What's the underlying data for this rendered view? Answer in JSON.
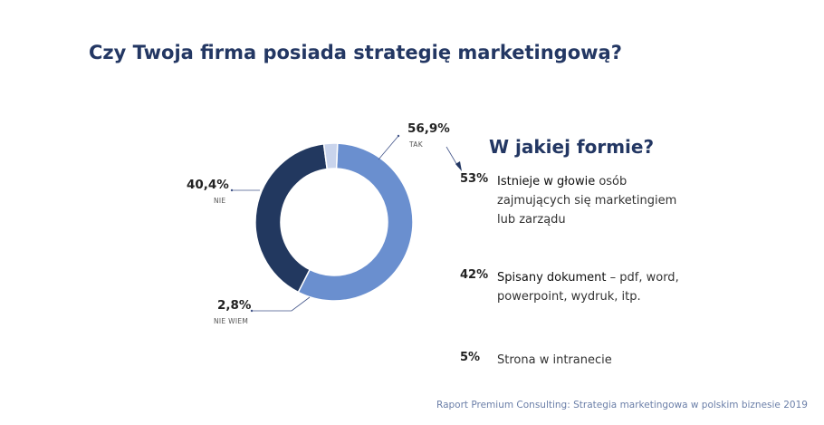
{
  "title": "Czy Twoja firma posiada strategię marketingową?",
  "colors": {
    "tak": "#6a8fcf",
    "nie": "#22385f",
    "nie_wiem": "#c9d4ec",
    "title": "#233763"
  },
  "chart_data": {
    "type": "pie",
    "variant": "donut",
    "categories": [
      "TAK",
      "NIE",
      "NIE WIEM"
    ],
    "values": [
      56.9,
      40.4,
      2.8
    ],
    "value_labels": [
      "56,9%",
      "40,4%",
      "2,8%"
    ]
  },
  "subtitle": "W jakiej formie?",
  "forms": [
    {
      "pct": "53%",
      "bold": "Istnieje w głowie",
      "rest": " osób zajmujących się marketingiem lub zarządu"
    },
    {
      "pct": "42%",
      "bold": "Spisany dokument",
      "rest": " – pdf, word, powerpoint, wydruk, itp."
    },
    {
      "pct": "5%",
      "bold": "",
      "rest": "Strona w intranecie"
    }
  ],
  "footer": "Raport Premium Consulting: Strategia marketingowa w polskim biznesie 2019"
}
